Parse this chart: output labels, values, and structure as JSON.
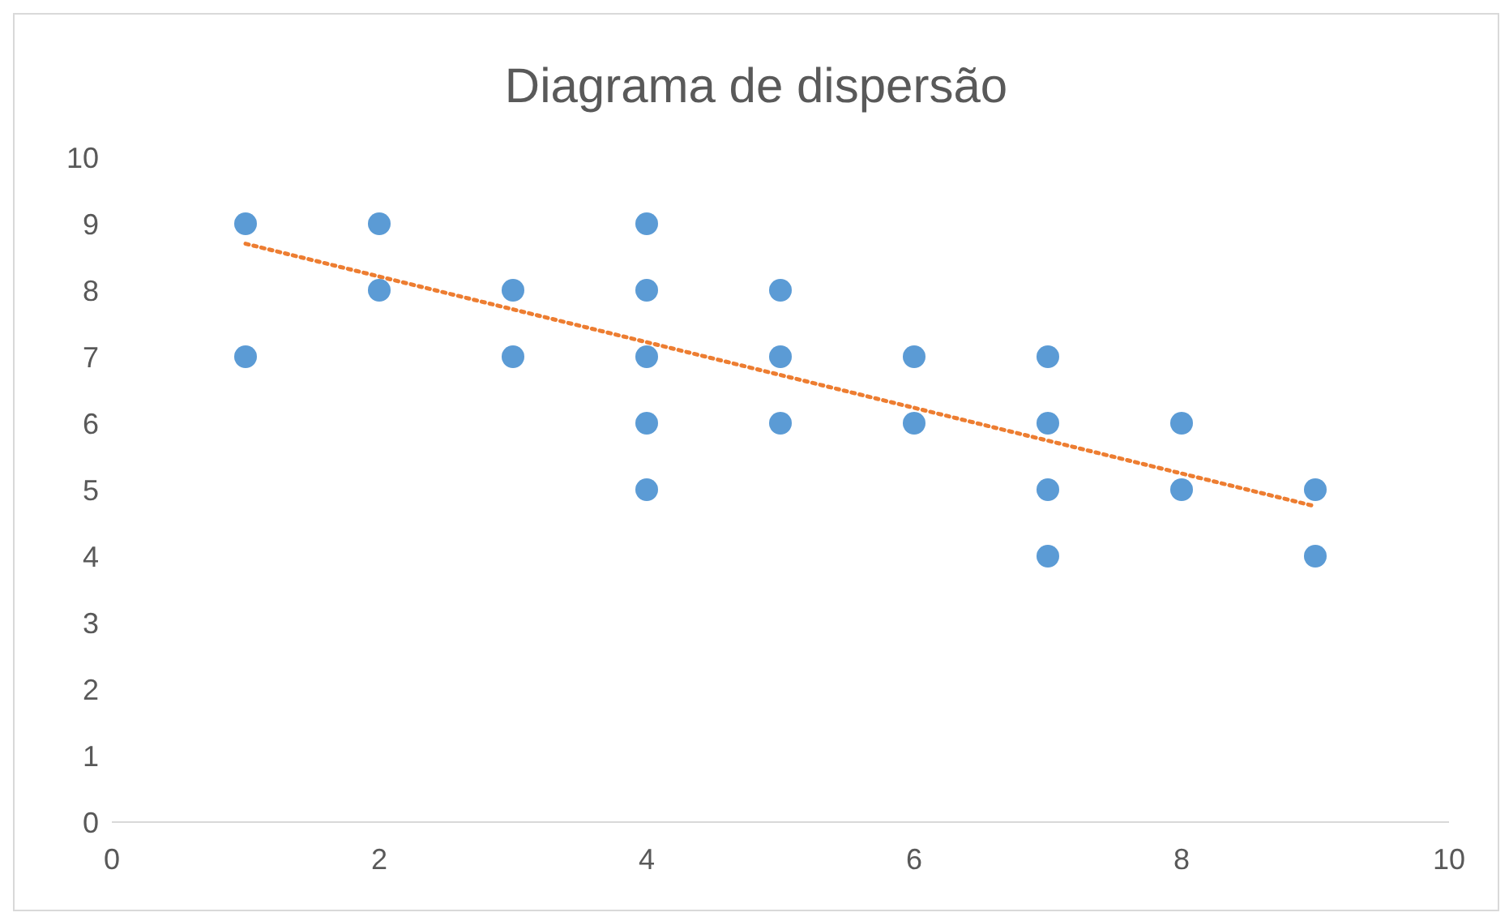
{
  "chart_data": {
    "type": "scatter",
    "title": "Diagrama de dispersão",
    "xlim": [
      0,
      10
    ],
    "xticks": [
      0,
      2,
      4,
      6,
      8,
      10
    ],
    "ylim": [
      0,
      10
    ],
    "yticks": [
      0,
      1,
      2,
      3,
      4,
      5,
      6,
      7,
      8,
      9,
      10
    ],
    "grid": false,
    "legend": false,
    "marker": "circle",
    "series": [
      {
        "color": "#5b9bd5",
        "x": [
          1,
          1,
          2,
          2,
          3,
          3,
          4,
          4,
          4,
          4,
          4,
          5,
          5,
          5,
          6,
          6,
          7,
          7,
          7,
          7,
          8,
          8,
          9,
          9
        ],
        "values": [
          9,
          7,
          9,
          8,
          8,
          7,
          9,
          8,
          7,
          6,
          5,
          8,
          7,
          6,
          7,
          6,
          7,
          6,
          5,
          4,
          6,
          5,
          5,
          4
        ]
      },
      {
        "type": "line",
        "color": "#ed7d31",
        "line_style": "dotted",
        "marker": "none",
        "x": [
          1,
          9
        ],
        "values": [
          8.7,
          4.75
        ]
      }
    ]
  }
}
